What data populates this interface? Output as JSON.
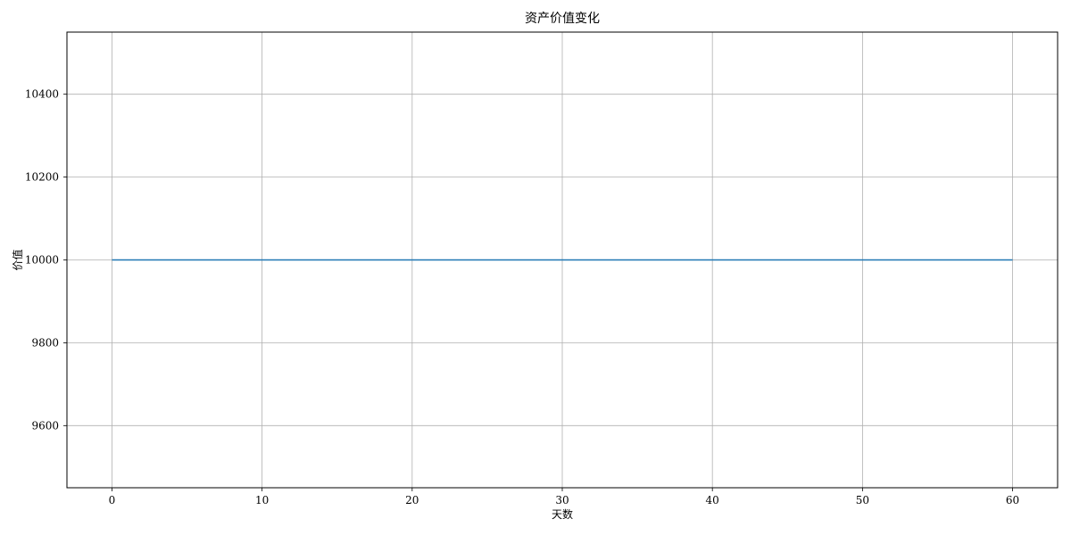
{
  "chart_data": {
    "type": "line",
    "title": "资产价值变化",
    "xlabel": "天数",
    "ylabel": "价值",
    "xlim": [
      -3,
      63
    ],
    "ylim": [
      9450,
      10550
    ],
    "x_ticks": [
      0,
      10,
      20,
      30,
      40,
      50,
      60
    ],
    "y_ticks": [
      9600,
      9800,
      10000,
      10200,
      10400
    ],
    "grid": true,
    "series": [
      {
        "color": "#1f77b4",
        "x": [
          0,
          60
        ],
        "y": [
          10000,
          10000
        ]
      }
    ]
  }
}
